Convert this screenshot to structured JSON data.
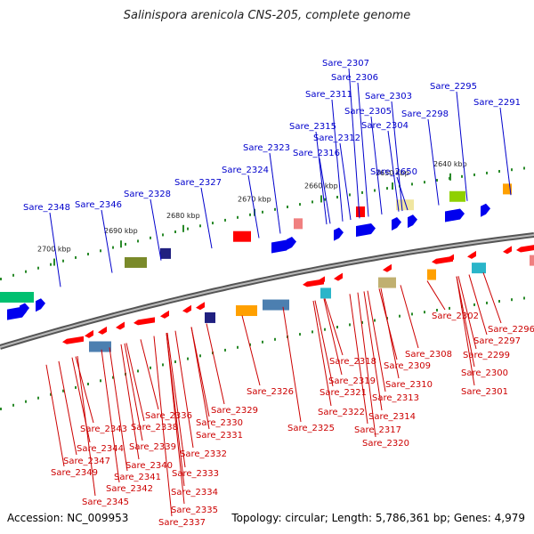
{
  "title": "Salinispora arenicola CNS-205, complete genome",
  "footer": {
    "accession": "Accession: NC_009953",
    "summary": "Topology: circular; Length: 5,786,361 bp; Genes: 4,979"
  },
  "colors": {
    "forward_label": "#0000cc",
    "reverse_label": "#cc0000",
    "backbone": "#808080",
    "tick": "#2a8a2a"
  },
  "ticks": [
    "2640 kbp",
    "2650 kbp",
    "2660 kbp",
    "2670 kbp",
    "2680 kbp",
    "2690 kbp",
    "2700 kbp"
  ],
  "labels_top": [
    "Sare_2307",
    "Sare_2306",
    "Sare_2311",
    "Sare_2303",
    "Sare_2295",
    "Sare_2305",
    "Sare_2291",
    "Sare_2298",
    "Sare_2315",
    "Sare_2304",
    "Sare_2312",
    "Sare_2323",
    "Sare_2316",
    "Sare_2650",
    "Sare_2324",
    "Sare_2327",
    "Sare_2328",
    "Sare_2346",
    "Sare_2348"
  ],
  "labels_bottom": [
    "Sare_2302",
    "Sare_2296",
    "Sare_2297",
    "Sare_2299",
    "Sare_2308",
    "Sare_2318",
    "Sare_2309",
    "Sare_2300",
    "Sare_2319",
    "Sare_2310",
    "Sare_2301",
    "Sare_2321",
    "Sare_2313",
    "Sare_2326",
    "Sare_2322",
    "Sare_2314",
    "Sare_2329",
    "Sare_2336",
    "Sare_2330",
    "Sare_2343",
    "Sare_2338",
    "Sare_2325",
    "Sare_2317",
    "Sare_2331",
    "Sare_2339",
    "Sare_2320",
    "Sare_2344",
    "Sare_2332",
    "Sare_2347",
    "Sare_2340",
    "Sare_2333",
    "Sare_2349",
    "Sare_2341",
    "Sare_2342",
    "Sare_2334",
    "Sare_2345",
    "Sare_2335",
    "Sare_2337"
  ]
}
